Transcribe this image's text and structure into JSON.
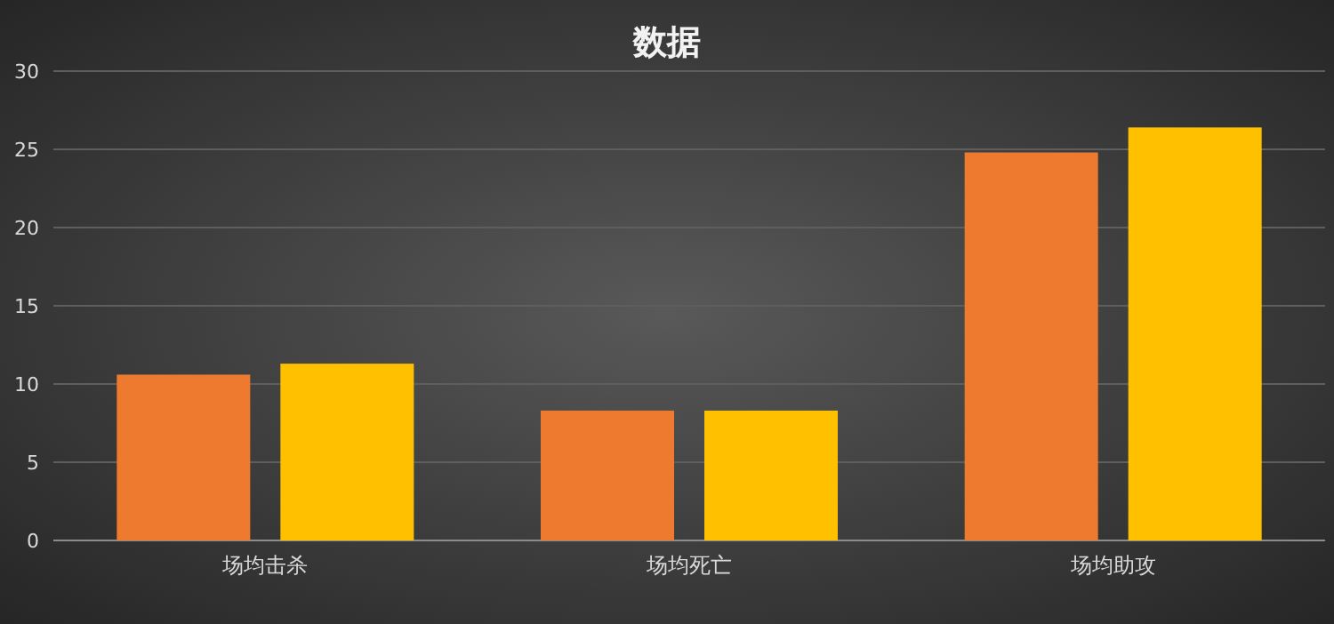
{
  "chart_data": {
    "type": "bar",
    "title": "数据",
    "categories": [
      "场均击杀",
      "场均死亡",
      "场均助攻"
    ],
    "series": [
      {
        "color": "#ee7a30",
        "values": [
          10.6,
          8.3,
          24.8
        ]
      },
      {
        "color": "#ffc000",
        "values": [
          11.3,
          8.3,
          26.4
        ]
      }
    ],
    "ylim": [
      0,
      30
    ],
    "yticks": [
      0,
      5,
      10,
      15,
      20,
      25,
      30
    ],
    "grid": "y"
  }
}
